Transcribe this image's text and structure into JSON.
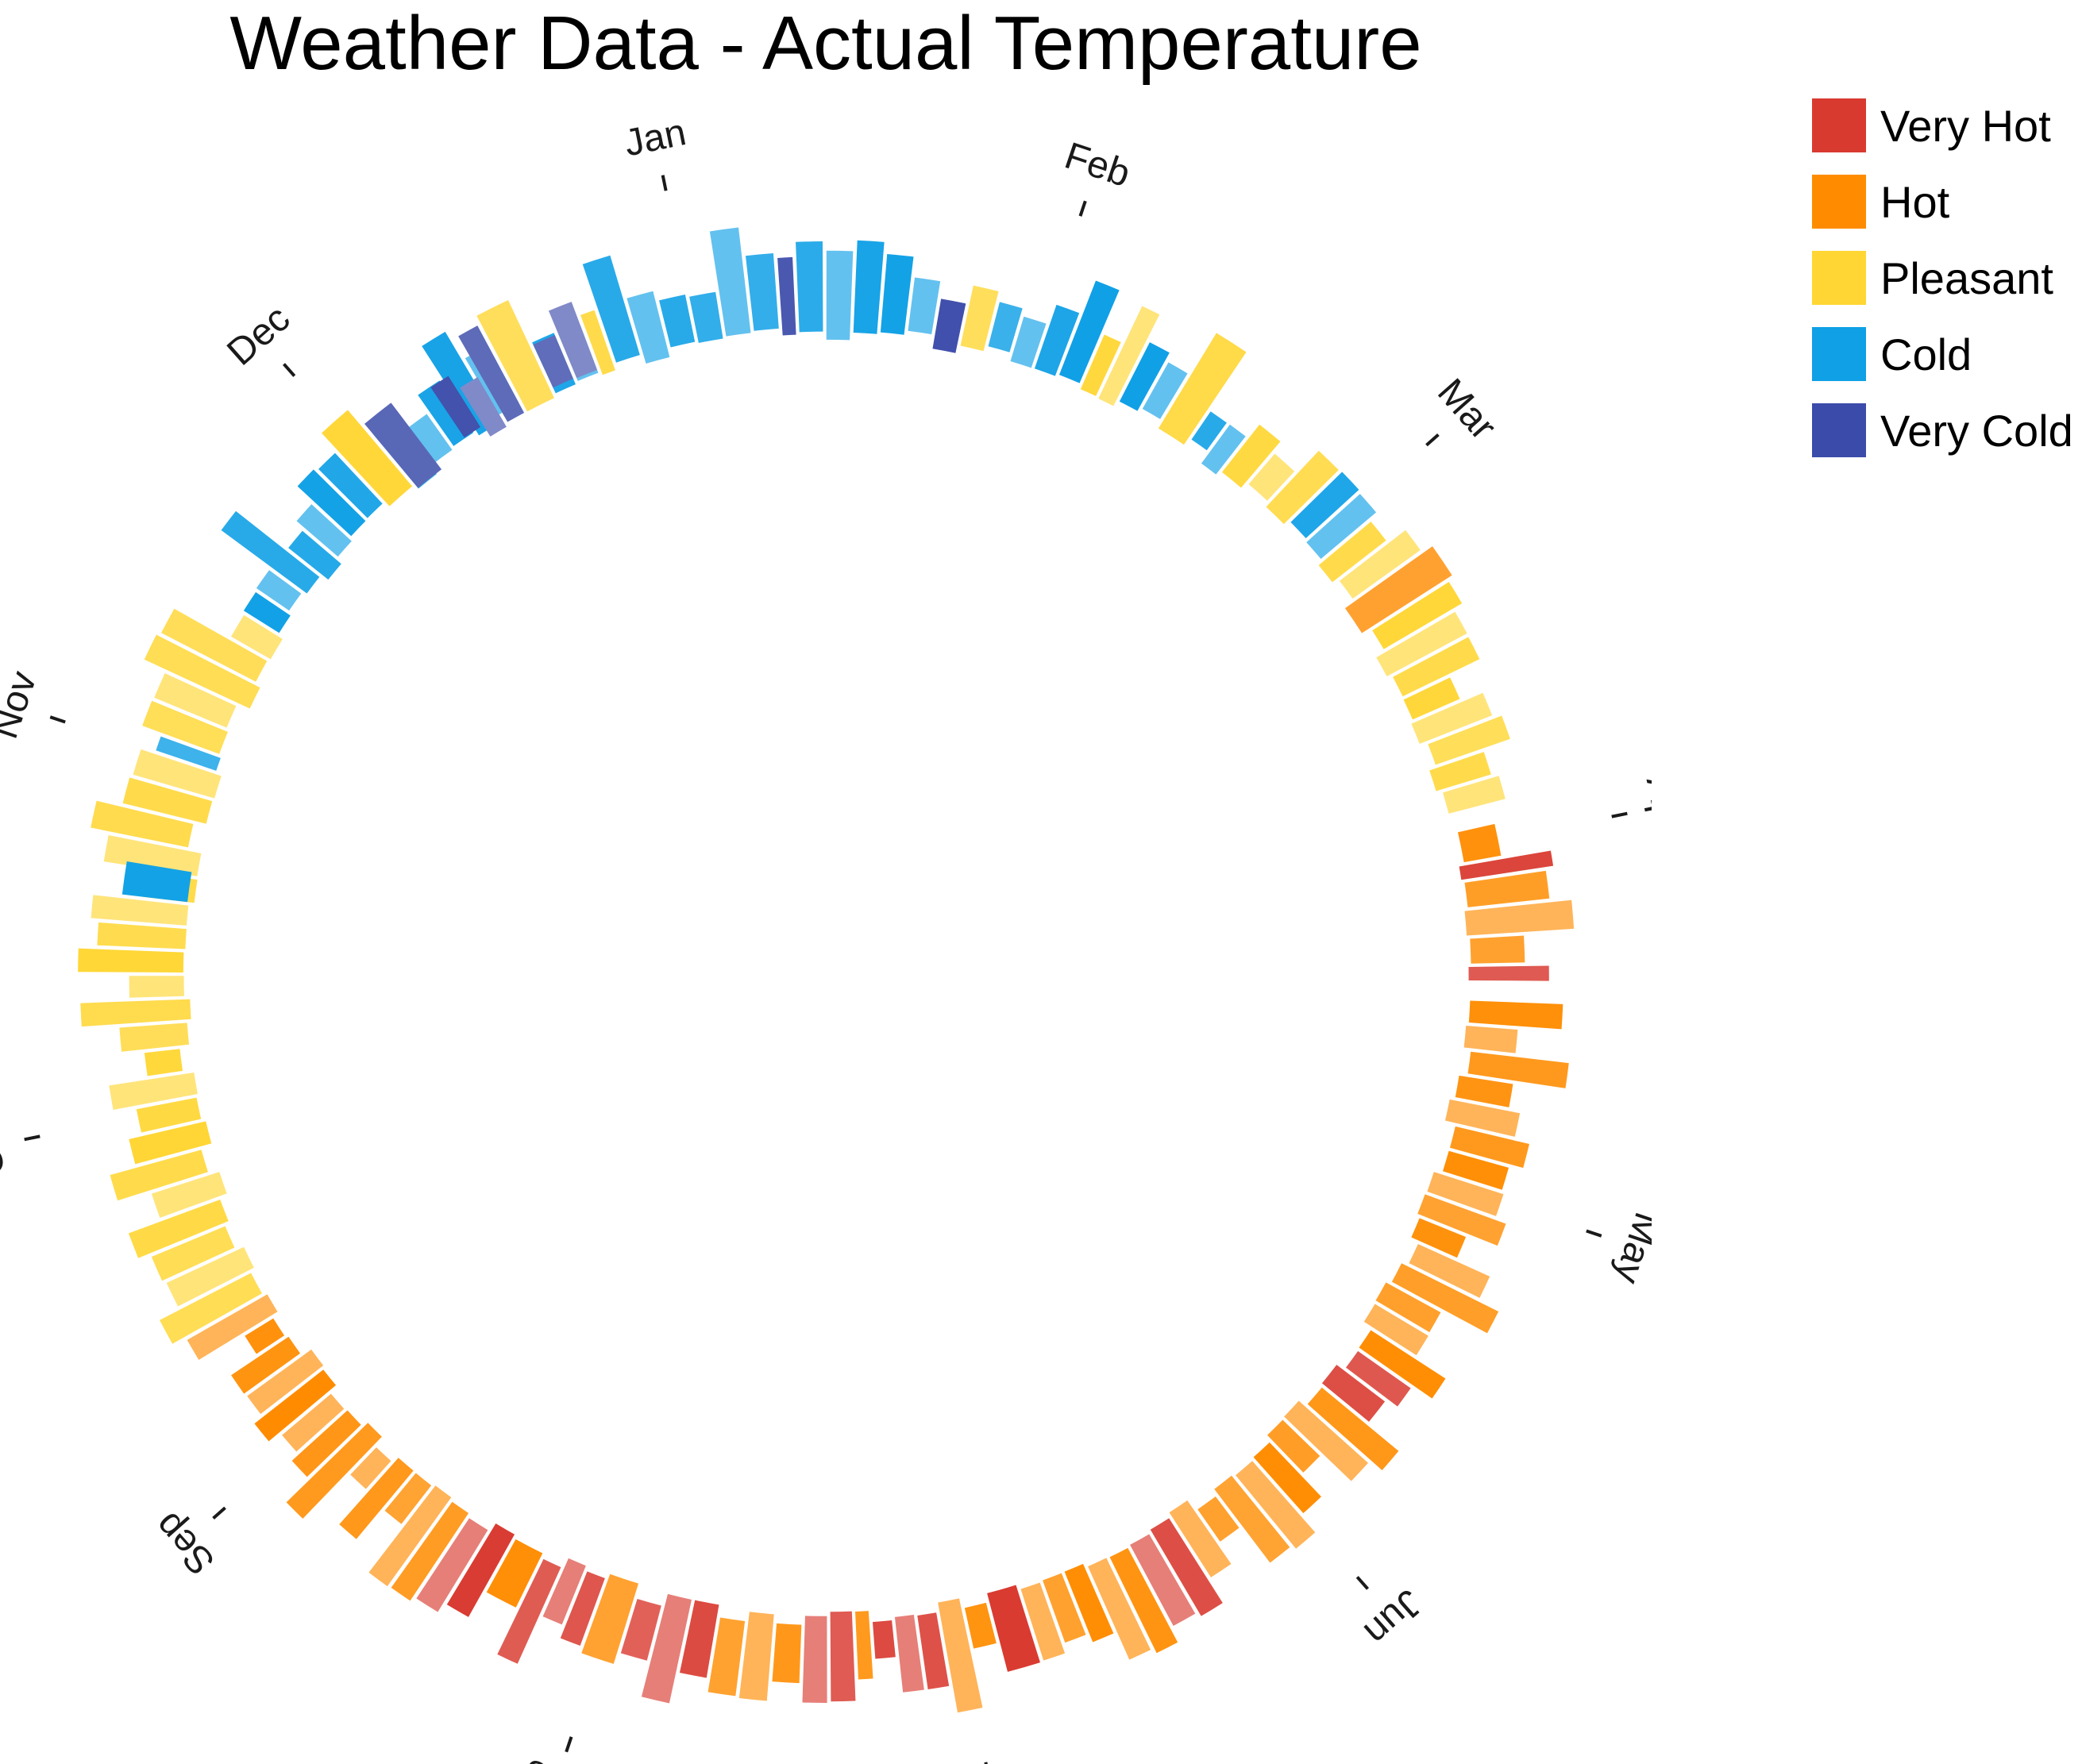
{
  "title": "Weather Data - Actual Temperature",
  "legend": [
    {
      "label": "Very Hot",
      "color": "#D93A30"
    },
    {
      "label": "Hot",
      "color": "#FF8C00"
    },
    {
      "label": "Pleasant",
      "color": "#FFD633"
    },
    {
      "label": "Cold",
      "color": "#0FA0E6"
    },
    {
      "label": "Very Cold",
      "color": "#3B4BAA"
    }
  ],
  "chart_data": {
    "type": "radial-bar",
    "title": "Weather Data - Actual Temperature",
    "axis_labels": [
      "Jan",
      "Feb",
      "Mar",
      "Apr",
      "May",
      "Jun",
      "Jul",
      "Aug",
      "Sep",
      "Oct",
      "Nov",
      "Dec"
    ],
    "grid": false,
    "legend_position": "top-right",
    "series": [
      {
        "name": "Very Hot",
        "color": "#D93A30",
        "segments": [
          [
            3.05,
            3.1
          ],
          [
            3.35,
            3.4
          ],
          [
            4.55,
            4.62
          ],
          [
            4.62,
            4.7
          ],
          [
            5.3,
            5.45
          ],
          [
            5.8,
            5.9
          ],
          [
            6.05,
            6.25
          ],
          [
            6.3,
            6.45
          ],
          [
            6.7,
            6.95
          ],
          [
            7.05,
            7.25
          ],
          [
            7.35,
            7.5
          ]
        ]
      },
      {
        "name": "Hot",
        "color": "#FF8C00",
        "segments": [
          [
            2.2,
            2.3
          ],
          [
            2.95,
            3.05
          ],
          [
            3.1,
            3.35
          ],
          [
            3.45,
            3.9
          ],
          [
            3.9,
            4.55
          ],
          [
            4.7,
            5.3
          ],
          [
            5.45,
            5.8
          ],
          [
            5.9,
            6.05
          ],
          [
            6.25,
            6.3
          ],
          [
            6.45,
            6.7
          ],
          [
            6.95,
            7.05
          ],
          [
            7.25,
            7.35
          ],
          [
            7.5,
            8.05
          ],
          [
            8.05,
            8.4
          ]
        ]
      },
      {
        "name": "Pleasant",
        "color": "#FFD633",
        "segments": [
          [
            0.78,
            0.86
          ],
          [
            1.16,
            1.28
          ],
          [
            1.42,
            1.52
          ],
          [
            1.65,
            1.9
          ],
          [
            2.05,
            2.2
          ],
          [
            2.3,
            2.9
          ],
          [
            8.4,
            8.95
          ],
          [
            8.95,
            9.25
          ],
          [
            9.25,
            9.6
          ],
          [
            9.6,
            10.0
          ],
          [
            10.05,
            10.45
          ],
          [
            10.95,
            11.05
          ],
          [
            11.45,
            11.55
          ],
          [
            11.7,
            11.75
          ]
        ]
      },
      {
        "name": "Cold",
        "color": "#0FA0E6",
        "segments": [
          [
            0.0,
            0.25
          ],
          [
            0.3,
            0.7
          ],
          [
            0.86,
            1.16
          ],
          [
            1.28,
            1.42
          ],
          [
            1.52,
            1.65
          ],
          [
            1.9,
            2.05
          ],
          [
            9.6,
            9.7
          ],
          [
            10.0,
            10.05
          ],
          [
            10.45,
            10.95
          ],
          [
            11.05,
            11.45
          ],
          [
            11.55,
            11.7
          ],
          [
            11.75,
            12.0
          ]
        ]
      },
      {
        "name": "Very Cold",
        "color": "#3B4BAA",
        "segments": [
          [
            0.25,
            0.3
          ],
          [
            0.7,
            0.78
          ],
          [
            11.05,
            11.15
          ],
          [
            11.25,
            11.45
          ],
          [
            11.55,
            11.7
          ]
        ]
      }
    ]
  }
}
